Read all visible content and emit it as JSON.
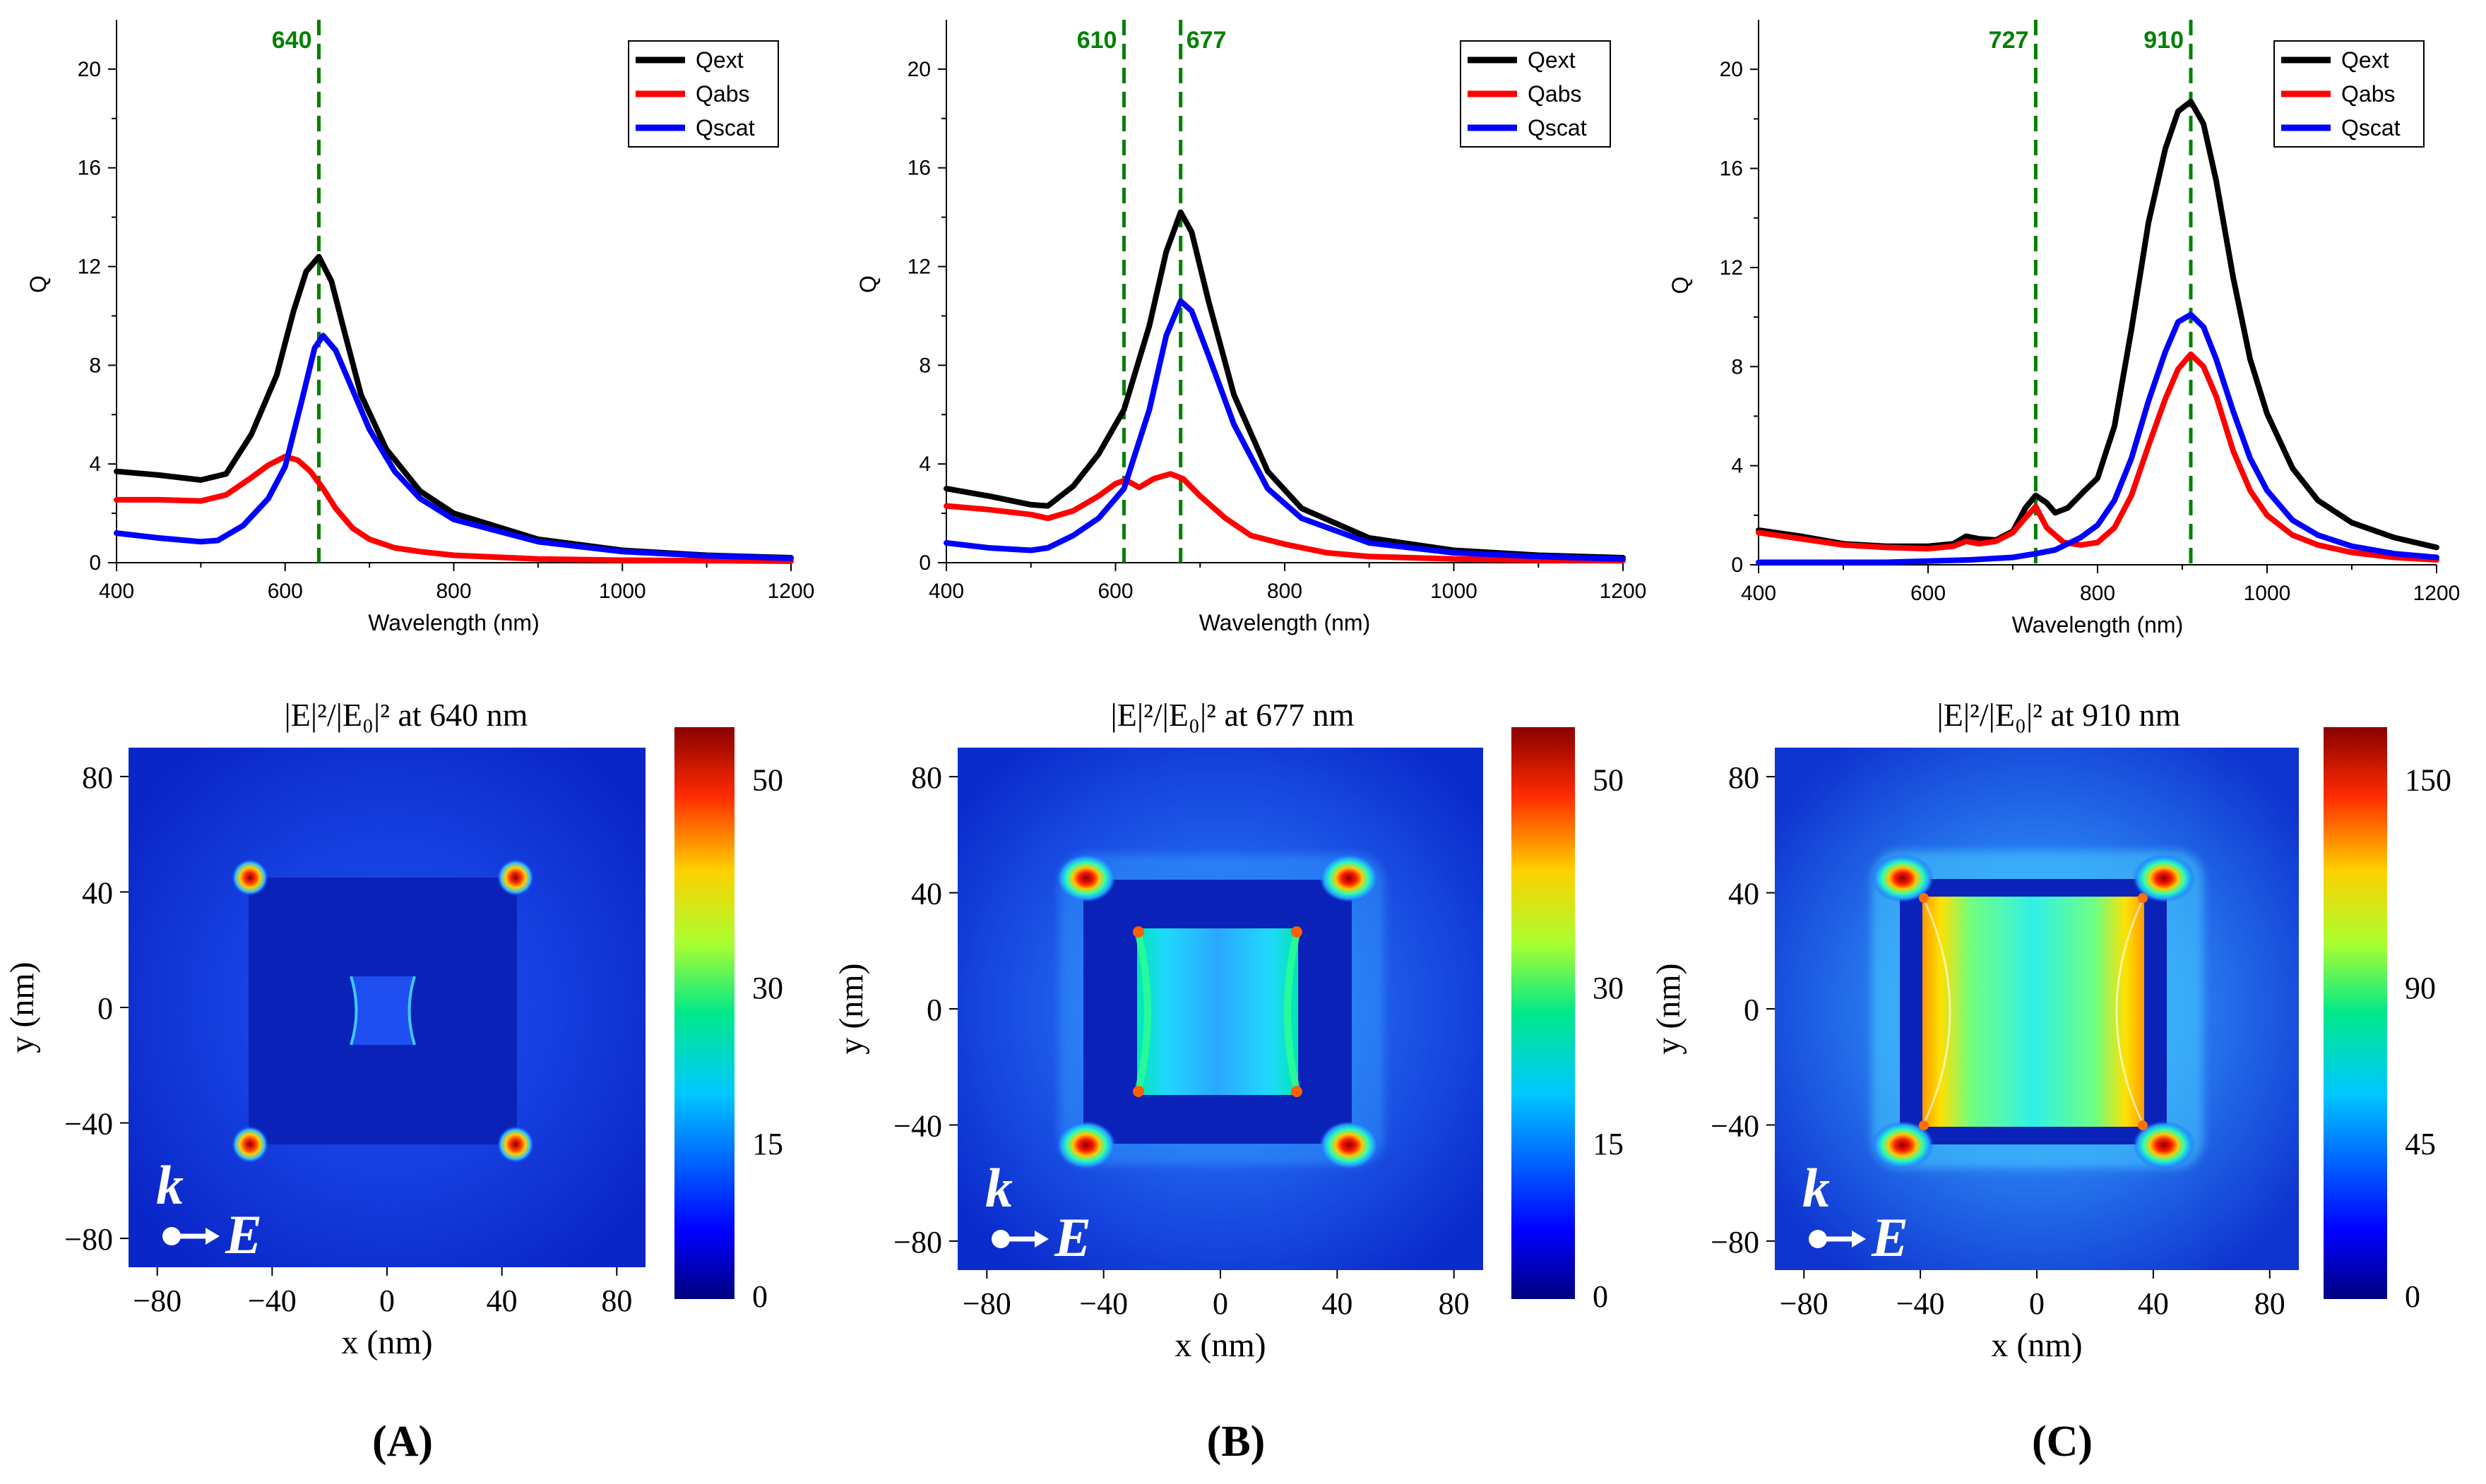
{
  "chart_data": [
    {
      "type": "line",
      "panel": "A",
      "xlabel": "Wavelength (nm)",
      "ylabel": "Q",
      "xlim": [
        400,
        1200
      ],
      "ylim": [
        0,
        22
      ],
      "xticks": [
        400,
        600,
        800,
        1000,
        1200
      ],
      "yticks": [
        0,
        4,
        8,
        12,
        16,
        20
      ],
      "legend": "top-right",
      "markers": [
        {
          "x": 640,
          "label": "640"
        }
      ],
      "series": [
        {
          "name": "Qext",
          "color": "#000000",
          "x": [
            400,
            450,
            500,
            530,
            560,
            590,
            610,
            625,
            640,
            655,
            670,
            690,
            720,
            760,
            800,
            900,
            1000,
            1100,
            1200
          ],
          "y": [
            3.7,
            3.55,
            3.35,
            3.6,
            5.2,
            7.6,
            10.2,
            11.8,
            12.4,
            11.4,
            9.4,
            6.8,
            4.6,
            2.9,
            2.0,
            0.95,
            0.5,
            0.3,
            0.2
          ]
        },
        {
          "name": "Qabs",
          "color": "#ff0000",
          "x": [
            400,
            450,
            500,
            530,
            560,
            580,
            600,
            615,
            630,
            645,
            660,
            680,
            700,
            730,
            760,
            800,
            900,
            1000,
            1100,
            1200
          ],
          "y": [
            2.55,
            2.55,
            2.5,
            2.75,
            3.45,
            3.95,
            4.3,
            4.15,
            3.7,
            3.0,
            2.2,
            1.4,
            0.95,
            0.6,
            0.45,
            0.3,
            0.15,
            0.1,
            0.08,
            0.06
          ]
        },
        {
          "name": "Qscat",
          "color": "#0000ff",
          "x": [
            400,
            450,
            500,
            520,
            550,
            580,
            600,
            620,
            635,
            645,
            660,
            680,
            700,
            730,
            760,
            800,
            900,
            1000,
            1100,
            1200
          ],
          "y": [
            1.2,
            1.0,
            0.85,
            0.9,
            1.5,
            2.6,
            3.9,
            6.6,
            8.7,
            9.2,
            8.6,
            7.0,
            5.4,
            3.7,
            2.6,
            1.75,
            0.85,
            0.45,
            0.28,
            0.18
          ]
        }
      ]
    },
    {
      "type": "line",
      "panel": "B",
      "xlabel": "Wavelength (nm)",
      "ylabel": "Q",
      "xlim": [
        400,
        1200
      ],
      "ylim": [
        0,
        22
      ],
      "xticks": [
        400,
        600,
        800,
        1000,
        1200
      ],
      "yticks": [
        0,
        4,
        8,
        12,
        16,
        20
      ],
      "legend": "top-right",
      "markers": [
        {
          "x": 610,
          "label": "610"
        },
        {
          "x": 677,
          "label": "677"
        }
      ],
      "series": [
        {
          "name": "Qext",
          "color": "#000000",
          "x": [
            400,
            450,
            500,
            520,
            550,
            580,
            610,
            640,
            660,
            677,
            690,
            710,
            740,
            780,
            820,
            900,
            1000,
            1100,
            1200
          ],
          "y": [
            3.0,
            2.7,
            2.35,
            2.3,
            3.1,
            4.4,
            6.2,
            9.6,
            12.6,
            14.2,
            13.4,
            10.6,
            6.8,
            3.7,
            2.2,
            1.0,
            0.5,
            0.3,
            0.2
          ]
        },
        {
          "name": "Qabs",
          "color": "#ff0000",
          "x": [
            400,
            450,
            500,
            520,
            550,
            580,
            600,
            612,
            628,
            645,
            665,
            680,
            700,
            730,
            760,
            800,
            850,
            900,
            1000,
            1100,
            1200
          ],
          "y": [
            2.3,
            2.15,
            1.95,
            1.8,
            2.1,
            2.7,
            3.2,
            3.35,
            3.05,
            3.4,
            3.6,
            3.4,
            2.7,
            1.8,
            1.1,
            0.75,
            0.4,
            0.25,
            0.15,
            0.1,
            0.08
          ]
        },
        {
          "name": "Qscat",
          "color": "#0000ff",
          "x": [
            400,
            450,
            500,
            520,
            550,
            580,
            610,
            640,
            660,
            677,
            690,
            710,
            740,
            780,
            820,
            900,
            1000,
            1100,
            1200
          ],
          "y": [
            0.8,
            0.6,
            0.5,
            0.6,
            1.1,
            1.8,
            3.0,
            6.2,
            9.2,
            10.6,
            10.2,
            8.4,
            5.6,
            3.0,
            1.8,
            0.8,
            0.4,
            0.25,
            0.15
          ]
        }
      ]
    },
    {
      "type": "line",
      "panel": "C",
      "xlabel": "Wavelength (nm)",
      "ylabel": "Q",
      "xlim": [
        400,
        1200
      ],
      "ylim": [
        0,
        22
      ],
      "xticks": [
        400,
        600,
        800,
        1000,
        1200
      ],
      "yticks": [
        0,
        4,
        8,
        12,
        16,
        20
      ],
      "legend": "top-right",
      "markers": [
        {
          "x": 727,
          "label": "727"
        },
        {
          "x": 910,
          "label": "910"
        }
      ],
      "series": [
        {
          "name": "Qext",
          "color": "#000000",
          "x": [
            400,
            450,
            500,
            550,
            600,
            630,
            645,
            660,
            680,
            700,
            715,
            727,
            740,
            750,
            765,
            785,
            800,
            820,
            840,
            860,
            880,
            895,
            910,
            925,
            940,
            960,
            980,
            1000,
            1030,
            1060,
            1100,
            1150,
            1200
          ],
          "y": [
            1.4,
            1.15,
            0.85,
            0.75,
            0.75,
            0.85,
            1.15,
            1.05,
            1.0,
            1.35,
            2.3,
            2.8,
            2.5,
            2.1,
            2.3,
            3.0,
            3.5,
            5.6,
            9.5,
            13.8,
            16.8,
            18.3,
            18.7,
            17.8,
            15.5,
            11.6,
            8.3,
            6.1,
            3.9,
            2.6,
            1.7,
            1.1,
            0.7
          ]
        },
        {
          "name": "Qabs",
          "color": "#ff0000",
          "x": [
            400,
            450,
            500,
            550,
            600,
            630,
            645,
            660,
            680,
            700,
            715,
            727,
            740,
            760,
            780,
            800,
            820,
            840,
            860,
            880,
            895,
            910,
            925,
            940,
            960,
            980,
            1000,
            1030,
            1060,
            1100,
            1150,
            1200
          ],
          "y": [
            1.3,
            1.05,
            0.8,
            0.7,
            0.65,
            0.75,
            0.95,
            0.85,
            0.95,
            1.3,
            1.9,
            2.35,
            1.5,
            0.9,
            0.8,
            0.9,
            1.5,
            2.8,
            4.8,
            6.7,
            7.9,
            8.5,
            8.0,
            6.8,
            4.6,
            3.0,
            2.0,
            1.2,
            0.8,
            0.5,
            0.3,
            0.2
          ]
        },
        {
          "name": "Qscat",
          "color": "#0000ff",
          "x": [
            400,
            450,
            500,
            550,
            600,
            650,
            700,
            727,
            750,
            780,
            800,
            820,
            840,
            860,
            880,
            895,
            910,
            925,
            940,
            960,
            980,
            1000,
            1030,
            1060,
            1100,
            1150,
            1200
          ],
          "y": [
            0.1,
            0.1,
            0.1,
            0.1,
            0.15,
            0.2,
            0.3,
            0.45,
            0.6,
            1.1,
            1.6,
            2.6,
            4.3,
            6.6,
            8.6,
            9.8,
            10.1,
            9.6,
            8.3,
            6.2,
            4.3,
            3.0,
            1.8,
            1.2,
            0.75,
            0.45,
            0.3
          ]
        }
      ]
    },
    {
      "type": "heatmap",
      "panel": "A",
      "title_prefix": "|E|²/|E₀|² at",
      "title_value": "640 nm",
      "xlabel": "x (nm)",
      "ylabel": "y (nm)",
      "xlim": [
        -90,
        90
      ],
      "ylim": [
        -90,
        90
      ],
      "xticks": [
        -80,
        -40,
        0,
        40,
        80
      ],
      "yticks": [
        80,
        40,
        0,
        -40,
        -80
      ],
      "colorbar_ticks": [
        50,
        30,
        15,
        0
      ],
      "colorbar_range": [
        0,
        55
      ],
      "arrows": {
        "k": "k",
        "e": "E"
      }
    },
    {
      "type": "heatmap",
      "panel": "B",
      "title_prefix": "|E|²/|E₀|² at",
      "title_value": "677 nm",
      "xlabel": "x (nm)",
      "ylabel": "y (nm)",
      "xlim": [
        -90,
        90
      ],
      "ylim": [
        -90,
        90
      ],
      "xticks": [
        -80,
        -40,
        0,
        40,
        80
      ],
      "yticks": [
        80,
        40,
        0,
        -40,
        -80
      ],
      "colorbar_ticks": [
        50,
        30,
        15,
        0
      ],
      "colorbar_range": [
        0,
        55
      ],
      "arrows": {
        "k": "k",
        "e": "E"
      }
    },
    {
      "type": "heatmap",
      "panel": "C",
      "title_prefix": "|E|²/|E₀|² at",
      "title_value": "910 nm",
      "xlabel": "x (nm)",
      "ylabel": "y (nm)",
      "xlim": [
        -90,
        90
      ],
      "ylim": [
        -90,
        90
      ],
      "xticks": [
        -80,
        -40,
        0,
        40,
        80
      ],
      "yticks": [
        80,
        40,
        0,
        -40,
        -80
      ],
      "colorbar_ticks": [
        150,
        90,
        45,
        0
      ],
      "colorbar_range": [
        0,
        165
      ],
      "arrows": {
        "k": "k",
        "e": "E"
      }
    }
  ],
  "panel_labels": [
    "(A)",
    "(B)",
    "(C)"
  ],
  "colors": {
    "marker": "#008000",
    "field_bg": "#0d2fd6",
    "particle": "#0a1fb5"
  }
}
